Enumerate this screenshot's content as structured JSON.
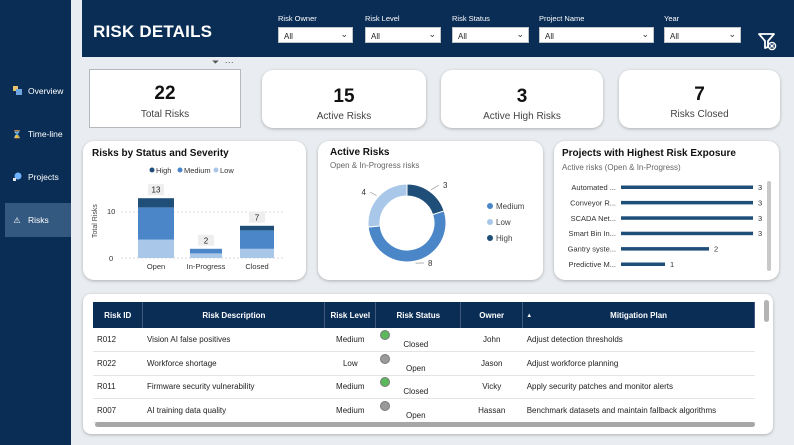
{
  "header": {
    "title": "RISK DETAILS",
    "filters": [
      {
        "label": "Risk Owner",
        "value": "All"
      },
      {
        "label": "Risk Level",
        "value": "All"
      },
      {
        "label": "Risk Status",
        "value": "All"
      },
      {
        "label": "Project Name",
        "value": "All"
      },
      {
        "label": "Year",
        "value": "All"
      }
    ],
    "clear_icon": "clear-filter-icon"
  },
  "sidebar": {
    "items": [
      {
        "label": "Overview",
        "icon": "overview-icon"
      },
      {
        "label": "Time-line",
        "icon": "hourglass-icon"
      },
      {
        "label": "Projects",
        "icon": "projects-icon"
      },
      {
        "label": "Risks",
        "icon": "warning-icon",
        "active": true
      }
    ]
  },
  "kpis": [
    {
      "value": "22",
      "label": "Total Risks"
    },
    {
      "value": "15",
      "label": "Active Risks"
    },
    {
      "value": "3",
      "label": "Active High Risks"
    },
    {
      "value": "7",
      "label": "Risks Closed"
    }
  ],
  "visual_header_icons": [
    "filter-icon",
    "more-options-icon"
  ],
  "status_chart": {
    "title": "Risks by Status and Severity",
    "ylabel": "Total Risks",
    "legend": [
      "High",
      "Medium",
      "Low"
    ],
    "ticks": [
      "0",
      "10"
    ]
  },
  "donut_chart": {
    "title": "Active Risks",
    "subtitle": "Open & In-Progress risks",
    "legend": [
      "Medium",
      "Low",
      "High"
    ]
  },
  "exposure_chart": {
    "title": "Projects with Highest Risk Exposure",
    "subtitle": "Active risks (Open & In-Progress)"
  },
  "chart_data": [
    {
      "type": "bar",
      "stacked": true,
      "categories": [
        "Open",
        "In-Progress",
        "Closed"
      ],
      "series": [
        {
          "name": "High",
          "values": [
            2,
            0,
            1
          ]
        },
        {
          "name": "Medium",
          "values": [
            7,
            1,
            4
          ]
        },
        {
          "name": "Low",
          "values": [
            4,
            1,
            2
          ]
        }
      ],
      "totals": [
        13,
        2,
        7
      ],
      "ylim": [
        0,
        15
      ],
      "title": "Risks by Status and Severity",
      "ylabel": "Total Risks",
      "legend_position": "top"
    },
    {
      "type": "pie",
      "donut": true,
      "labels": [
        "Medium",
        "Low",
        "High"
      ],
      "values": [
        8,
        4,
        3
      ],
      "title": "Active Risks",
      "legend_position": "right"
    },
    {
      "type": "bar",
      "orientation": "horizontal",
      "categories": [
        "Automated ...",
        "Conveyor R...",
        "SCADA Net...",
        "Smart Bin In...",
        "Gantry syste...",
        "Predictive M..."
      ],
      "values": [
        3,
        3,
        3,
        3,
        2,
        1
      ],
      "title": "Projects with Highest Risk Exposure"
    }
  ],
  "colors": {
    "navy": "#0a2d55",
    "high": "#1f4e79",
    "medium": "#4a86c8",
    "low": "#a9c7e8",
    "sidebar_active": "#345980",
    "status_green": "#5cb85c",
    "status_grey": "#9a9a9a"
  },
  "table": {
    "columns": [
      "Risk ID",
      "Risk Description",
      "Risk Level",
      "Risk Status",
      "Owner",
      "Mitigation Plan"
    ],
    "rows": [
      {
        "id": "R012",
        "desc": "Vision AI false positives",
        "level": "Medium",
        "status_color": "green",
        "status": "Closed",
        "owner": "John",
        "plan": "Adjust detection thresholds"
      },
      {
        "id": "R022",
        "desc": "Workforce shortage",
        "level": "Low",
        "status_color": "grey",
        "status": "Open",
        "owner": "Jason",
        "plan": "Adjust workforce planning"
      },
      {
        "id": "R011",
        "desc": "Firmware security vulnerability",
        "level": "Medium",
        "status_color": "green",
        "status": "Closed",
        "owner": "Vicky",
        "plan": "Apply security patches and monitor alerts"
      },
      {
        "id": "R007",
        "desc": "AI training data quality",
        "level": "Medium",
        "status_color": "grey",
        "status": "Open",
        "owner": "Hassan",
        "plan": "Benchmark datasets and maintain fallback algorithms"
      }
    ]
  }
}
